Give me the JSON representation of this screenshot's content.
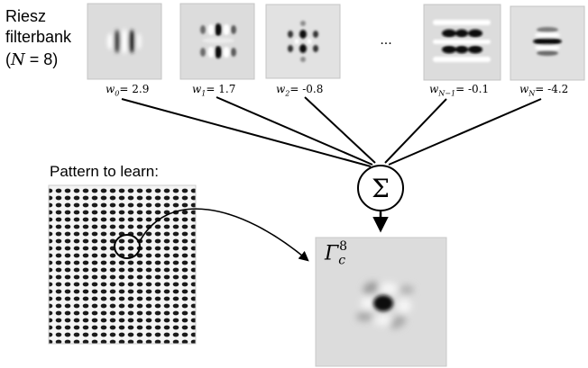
{
  "title_lines": [
    "Riesz",
    "filterbank"
  ],
  "n_label": {
    "open": "(",
    "var": "N",
    "eq": " = 8)"
  },
  "ellipsis": "...",
  "weights": [
    {
      "symbol": "w",
      "sub": "0",
      "text": "= 2.9"
    },
    {
      "symbol": "w",
      "sub": "1",
      "text": "= 1.7"
    },
    {
      "symbol": "w",
      "sub": "2",
      "text": "= -0.8"
    },
    {
      "symbol": "w",
      "sub": "N−1",
      "text": "= -0.1"
    },
    {
      "symbol": "w",
      "sub": "N",
      "text": "= -4.2"
    }
  ],
  "sum_symbol": "Σ",
  "pattern_label": "Pattern to learn:",
  "output": {
    "symbol": "Γ",
    "sub": "c",
    "sup": "8"
  },
  "colors": {
    "panel_bg": "#dcdcdc",
    "ink": "#000000",
    "border": "#b0b0b0"
  }
}
